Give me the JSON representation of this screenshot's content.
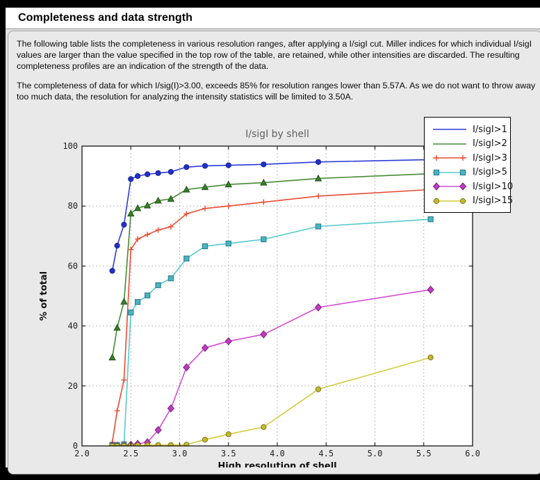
{
  "page": {
    "title": "Completeness and data strength",
    "paragraph1": "The following table lists the completeness in various resolution ranges, after applying a I/sigI cut. Miller indices for which individual I/sigI values are larger than the value specified in the top row of the table, are retained, while other intensities are discarded. The resulting completeness profiles are an indication of the strength of the data.",
    "paragraph2": "The completeness of data for which I/sig(I)>3.00, exceeds  85% for resolution ranges lower than 5.57A. As we do not want to throw away too much data, the resolution for analyzing the intensity statistics will be limited to 3.50A."
  },
  "chart_data": {
    "type": "line",
    "title": "I/sigI by shell",
    "xlabel": "High resolution of shell",
    "ylabel": "% of total",
    "xlim": [
      2.0,
      6.0
    ],
    "ylim": [
      0,
      100
    ],
    "x_ticks": [
      2.0,
      2.5,
      3.0,
      3.5,
      4.0,
      4.5,
      5.0,
      5.5,
      6.0
    ],
    "x_tick_labels": [
      "2.0",
      "2.5",
      "3.0",
      "3.5",
      "4.0",
      "4.5",
      "5.0",
      "5.5",
      "6.0"
    ],
    "y_ticks": [
      0,
      20,
      40,
      60,
      80,
      100
    ],
    "y_tick_labels": [
      "0",
      "20",
      "40",
      "60",
      "80",
      "100"
    ],
    "grid": true,
    "grid_color": "#bdbdbd",
    "legend_position": "top-right",
    "x": [
      2.31,
      2.36,
      2.43,
      2.5,
      2.57,
      2.67,
      2.78,
      2.91,
      3.07,
      3.26,
      3.5,
      3.86,
      4.42,
      5.57
    ],
    "series": [
      {
        "name": "I/sigI>1",
        "line_color": "#2a3ad9",
        "marker": "circle",
        "marker_fill": "#2230cf",
        "marker_edge": "#141f8a",
        "legend_marker": "none",
        "values": [
          58.4,
          66.8,
          73.8,
          89.0,
          90.0,
          90.6,
          91.0,
          91.4,
          93.0,
          93.4,
          93.6,
          93.9,
          94.7,
          95.5
        ]
      },
      {
        "name": "I/sigI>2",
        "line_color": "#448a33",
        "marker": "triangle",
        "marker_fill": "#3a7e2c",
        "marker_edge": "#20511a",
        "legend_marker": "none",
        "values": [
          29.5,
          39.4,
          48.1,
          77.5,
          79.3,
          80.2,
          81.8,
          82.4,
          85.5,
          86.3,
          87.2,
          87.8,
          89.2,
          90.8
        ]
      },
      {
        "name": "I/sigI>3",
        "line_color": "#e84b31",
        "marker": "plus",
        "marker_fill": "#e84b31",
        "marker_edge": "#e84b31",
        "legend_marker": "ends",
        "values": [
          1.2,
          11.7,
          22.0,
          65.5,
          69.0,
          70.5,
          72.0,
          73.1,
          77.4,
          79.2,
          80.0,
          81.3,
          83.3,
          85.5
        ]
      },
      {
        "name": "I/sigI>5",
        "line_color": "#55c9cf",
        "marker": "square",
        "marker_fill": "#4ab4c2",
        "marker_edge": "#2b7d8e",
        "legend_marker": "ends",
        "values": [
          0.2,
          0.3,
          0.5,
          44.5,
          48.0,
          50.2,
          53.6,
          55.9,
          62.5,
          66.6,
          67.5,
          68.9,
          73.2,
          75.6
        ]
      },
      {
        "name": "I/sigI>10",
        "line_color": "#d24fd2",
        "marker": "diamond",
        "marker_fill": "#c13cc1",
        "marker_edge": "#7d2483",
        "legend_marker": "ends",
        "values": [
          0.0,
          0.1,
          0.2,
          0.4,
          0.7,
          1.2,
          5.3,
          12.5,
          26.2,
          32.7,
          34.9,
          37.2,
          46.2,
          52.1
        ]
      },
      {
        "name": "I/sigI>15",
        "line_color": "#d4ca3c",
        "marker": "circle",
        "marker_fill": "#c5b92e",
        "marker_edge": "#7d751c",
        "legend_marker": "ends",
        "values": [
          0.0,
          0.0,
          0.1,
          0.1,
          0.2,
          0.3,
          0.3,
          0.3,
          0.4,
          2.1,
          3.9,
          6.3,
          18.9,
          29.5
        ]
      }
    ]
  }
}
